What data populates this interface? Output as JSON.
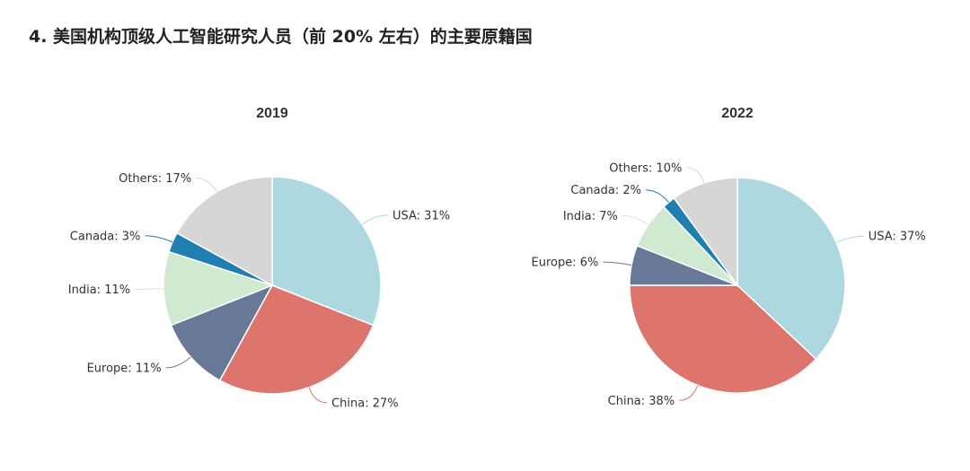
{
  "title": "4. 美国机构顶级人工智能研究人员（前 20% 左右）的主要原籍国",
  "colors": {
    "USA": "#add8e0",
    "China": "#dd756c",
    "Europe": "#677997",
    "India": "#cfead0",
    "Canada": "#1f7fb0",
    "Others": "#d6d6d6"
  },
  "chart_data": [
    {
      "type": "pie",
      "title": "2019",
      "slices": [
        {
          "name": "USA",
          "value": 31,
          "label": "USA: 31%"
        },
        {
          "name": "China",
          "value": 27,
          "label": "China: 27%"
        },
        {
          "name": "Europe",
          "value": 11,
          "label": "Europe: 11%"
        },
        {
          "name": "India",
          "value": 11,
          "label": "India: 11%"
        },
        {
          "name": "Canada",
          "value": 3,
          "label": "Canada: 3%"
        },
        {
          "name": "Others",
          "value": 17,
          "label": "Others: 17%"
        }
      ]
    },
    {
      "type": "pie",
      "title": "2022",
      "slices": [
        {
          "name": "USA",
          "value": 37,
          "label": "USA: 37%"
        },
        {
          "name": "China",
          "value": 38,
          "label": "China: 38%"
        },
        {
          "name": "Europe",
          "value": 6,
          "label": "Europe: 6%"
        },
        {
          "name": "India",
          "value": 7,
          "label": "India: 7%"
        },
        {
          "name": "Canada",
          "value": 2,
          "label": "Canada: 2%"
        },
        {
          "name": "Others",
          "value": 10,
          "label": "Others: 10%"
        }
      ]
    }
  ]
}
